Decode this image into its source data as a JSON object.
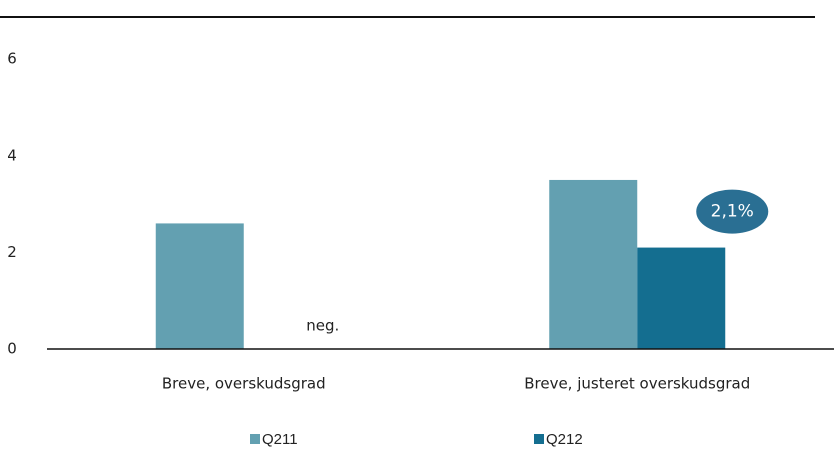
{
  "chart_data": {
    "type": "bar",
    "categories": [
      "Breve, overskudsgrad",
      "Breve, justeret overskudsgrad"
    ],
    "series": [
      {
        "name": "Q211",
        "color": "#63a0b1",
        "values": [
          2.6,
          3.5
        ]
      },
      {
        "name": "Q212",
        "color": "#146e90",
        "values": [
          null,
          2.1
        ],
        "value_labels": [
          null,
          "2,1%"
        ]
      }
    ],
    "annotations": [
      "neg."
    ],
    "ylim": [
      0,
      6.2
    ],
    "yticks": [
      0,
      2,
      4,
      6
    ],
    "grid": false
  }
}
